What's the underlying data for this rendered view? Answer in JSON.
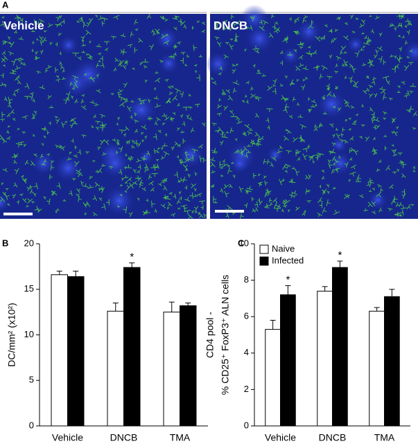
{
  "panels": {
    "a": "A",
    "b": "B",
    "c": "C"
  },
  "images": [
    {
      "caption": "Vehicle"
    },
    {
      "caption": "DNCB"
    }
  ],
  "chart_data": [
    {
      "type": "bar",
      "ylabel": "DC/mm² (x10²)",
      "categories": [
        "Vehicle",
        "DNCB",
        "TMA"
      ],
      "series": [
        {
          "color": "#ffffff",
          "values": [
            16.6,
            12.6,
            12.5
          ],
          "errors": [
            0.4,
            0.9,
            1.1
          ]
        },
        {
          "color": "#000000",
          "values": [
            16.4,
            17.4,
            13.2
          ],
          "errors": [
            0.6,
            0.5,
            0.3
          ]
        }
      ],
      "annotations": [
        {
          "text": "*",
          "category": "DNCB"
        }
      ],
      "ylim": [
        0,
        20
      ],
      "yticks": [
        0,
        5,
        10,
        15,
        20
      ]
    },
    {
      "type": "bar",
      "ylabel": [
        "CD4 pool -",
        "% CD25⁺ FoxP3⁺ ALN cells"
      ],
      "categories": [
        "Vehicle",
        "DNCB",
        "TMA"
      ],
      "series": [
        {
          "name": "Naive",
          "color": "#ffffff",
          "values": [
            5.3,
            7.4,
            6.3
          ],
          "errors": [
            0.5,
            0.25,
            0.2
          ]
        },
        {
          "name": "Infected",
          "color": "#000000",
          "values": [
            7.2,
            8.7,
            7.1
          ],
          "errors": [
            0.5,
            0.35,
            0.4
          ]
        }
      ],
      "annotations": [
        {
          "text": "*",
          "category": "Vehicle"
        },
        {
          "text": "*",
          "category": "DNCB"
        }
      ],
      "ylim": [
        0,
        10
      ],
      "yticks": [
        0,
        2,
        4,
        6,
        8,
        10
      ],
      "legend": "top-left"
    }
  ]
}
